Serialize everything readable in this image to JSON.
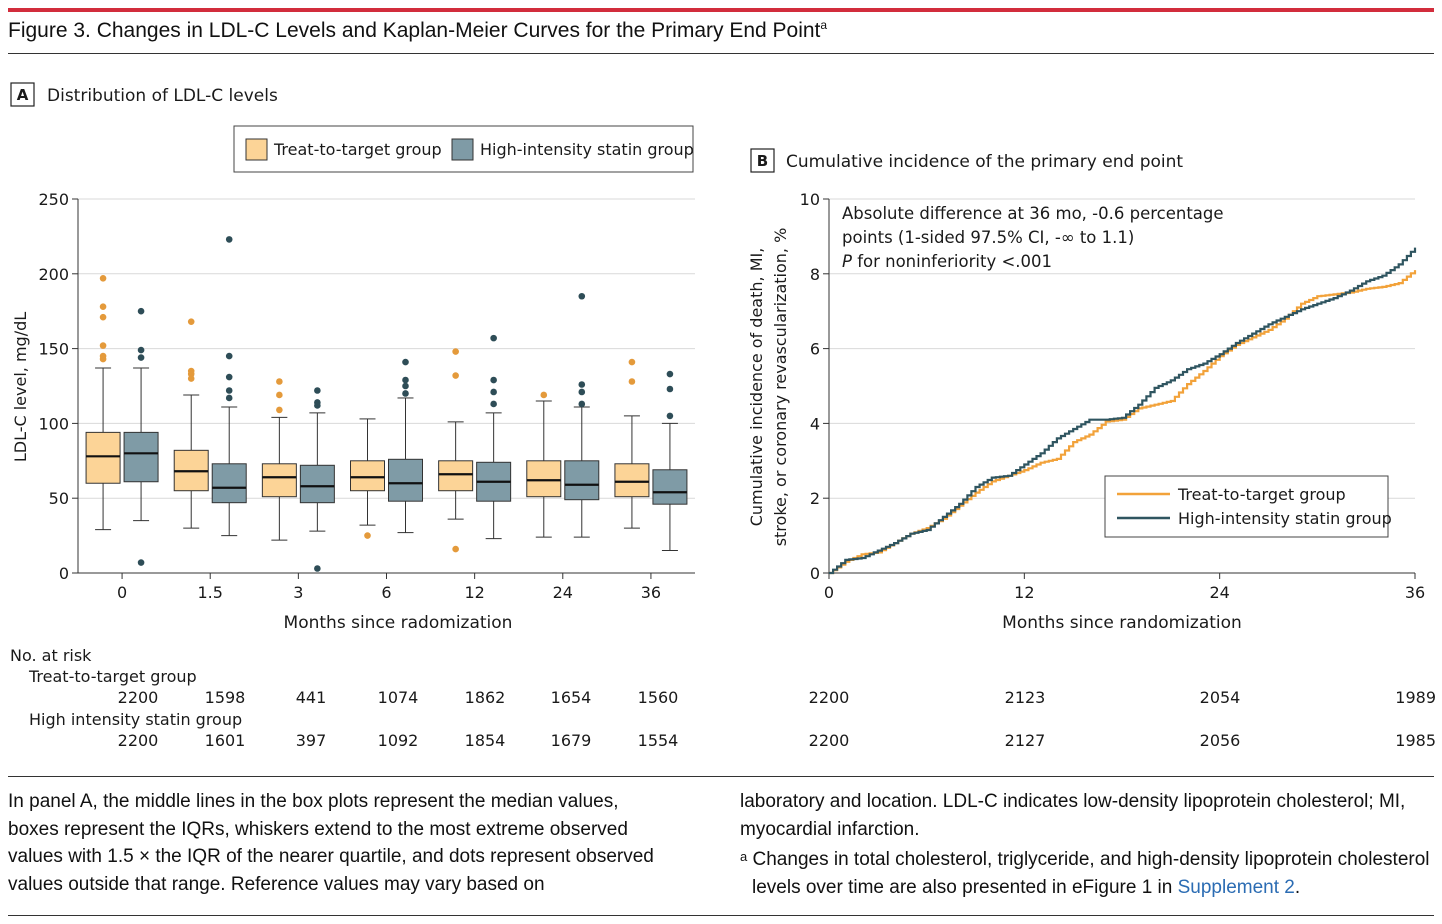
{
  "figure": {
    "title": "Figure 3. Changes in LDL-C Levels and Kaplan-Meier Curves for the Primary End Point",
    "title_sup": "a"
  },
  "colors": {
    "accent_bar": "#d22d3c",
    "treat_box": "#fcd497",
    "high_box": "#7f9ba6",
    "treat_dot": "#e49a3b",
    "high_dot": "#2e4d57",
    "treat_line": "#f2a23a",
    "high_line": "#2f5560"
  },
  "chart_data": [
    {
      "type": "box",
      "panel_letter": "A",
      "title": "Distribution of LDL-C levels",
      "xlabel": "Months since radomization",
      "ylabel": "LDL-C level, mg/dL",
      "ylim": [
        0,
        250
      ],
      "yticks": [
        0,
        50,
        100,
        150,
        200,
        250
      ],
      "categories": [
        "0",
        "1.5",
        "3",
        "6",
        "12",
        "24",
        "36"
      ],
      "grid": true,
      "legend_position": "top",
      "series": [
        {
          "name": "Treat-to-target group",
          "boxes": [
            {
              "low": 29,
              "q1": 60,
              "median": 78,
              "q3": 94,
              "high": 137,
              "outliers": [
                197,
                178,
                171,
                152,
                145,
                143
              ]
            },
            {
              "low": 30,
              "q1": 55,
              "median": 68,
              "q3": 82,
              "high": 119,
              "outliers": [
                168,
                135,
                133,
                130
              ]
            },
            {
              "low": 22,
              "q1": 51,
              "median": 64,
              "q3": 73,
              "high": 104,
              "outliers": [
                128,
                119,
                109
              ]
            },
            {
              "low": 32,
              "q1": 55,
              "median": 64,
              "q3": 75,
              "high": 103,
              "outliers": [
                25
              ]
            },
            {
              "low": 36,
              "q1": 55,
              "median": 66,
              "q3": 75,
              "high": 101,
              "outliers": [
                148,
                132,
                16
              ]
            },
            {
              "low": 24,
              "q1": 51,
              "median": 62,
              "q3": 75,
              "high": 115,
              "outliers": [
                119
              ]
            },
            {
              "low": 30,
              "q1": 51,
              "median": 61,
              "q3": 73,
              "high": 105,
              "outliers": [
                141,
                128
              ]
            }
          ]
        },
        {
          "name": "High-intensity statin group",
          "boxes": [
            {
              "low": 35,
              "q1": 61,
              "median": 80,
              "q3": 94,
              "high": 137,
              "outliers": [
                175,
                149,
                144,
                7
              ]
            },
            {
              "low": 25,
              "q1": 47,
              "median": 57,
              "q3": 73,
              "high": 111,
              "outliers": [
                223,
                145,
                131,
                122,
                117
              ]
            },
            {
              "low": 28,
              "q1": 47,
              "median": 58,
              "q3": 72,
              "high": 107,
              "outliers": [
                122,
                114,
                112,
                3
              ]
            },
            {
              "low": 27,
              "q1": 48,
              "median": 60,
              "q3": 76,
              "high": 117,
              "outliers": [
                141,
                129,
                125,
                120
              ]
            },
            {
              "low": 23,
              "q1": 48,
              "median": 61,
              "q3": 74,
              "high": 107,
              "outliers": [
                157,
                129,
                121,
                113
              ]
            },
            {
              "low": 24,
              "q1": 49,
              "median": 59,
              "q3": 75,
              "high": 111,
              "outliers": [
                185,
                126,
                121,
                113
              ]
            },
            {
              "low": 15,
              "q1": 46,
              "median": 54,
              "q3": 69,
              "high": 100,
              "outliers": [
                133,
                123,
                105
              ]
            }
          ]
        }
      ]
    },
    {
      "type": "line",
      "panel_letter": "B",
      "title": "Cumulative incidence of the primary end point",
      "xlabel": "Months since randomization",
      "ylabel": "Cumulative incidence of death, MI, stroke, or coronary revascularization, %",
      "ylabel_lines": [
        "Cumulative incidence of death, MI,",
        "stroke, or coronary revascularization, %"
      ],
      "xlim": [
        0,
        36
      ],
      "ylim": [
        0,
        10
      ],
      "xticks": [
        0,
        12,
        24,
        36
      ],
      "yticks": [
        0,
        2,
        4,
        6,
        8,
        10
      ],
      "grid": true,
      "legend_position": "bottom-right",
      "annotation_lines": [
        "Absolute difference at 36 mo, -0.6 percentage",
        "points (1-sided 97.5% CI, -∞ to 1.1)",
        "P for noninferiority <.001"
      ],
      "annotation_italic_prefix": "P",
      "series": [
        {
          "name": "Treat-to-target group",
          "x": [
            0,
            1,
            2,
            3,
            4,
            5,
            6,
            7,
            8,
            9,
            10,
            11,
            12,
            13,
            14,
            15,
            16,
            17,
            18,
            19,
            20,
            21,
            22,
            23,
            24,
            25,
            26,
            27,
            28,
            29,
            30,
            31,
            32,
            33,
            34,
            35,
            36
          ],
          "y": [
            0.0,
            0.3,
            0.5,
            0.55,
            0.8,
            1.05,
            1.2,
            1.45,
            1.8,
            2.15,
            2.45,
            2.6,
            2.75,
            2.95,
            3.05,
            3.5,
            3.7,
            4.05,
            4.1,
            4.4,
            4.5,
            4.6,
            5.05,
            5.4,
            5.8,
            6.1,
            6.3,
            6.5,
            6.8,
            7.2,
            7.4,
            7.45,
            7.5,
            7.6,
            7.65,
            7.75,
            8.1
          ]
        },
        {
          "name": "High-intensity statin group",
          "x": [
            0,
            1,
            2,
            3,
            4,
            5,
            6,
            7,
            8,
            9,
            10,
            11,
            12,
            13,
            14,
            15,
            16,
            17,
            18,
            19,
            20,
            21,
            22,
            23,
            24,
            25,
            26,
            27,
            28,
            29,
            30,
            31,
            32,
            33,
            34,
            35,
            36
          ],
          "y": [
            0.0,
            0.35,
            0.4,
            0.6,
            0.8,
            1.05,
            1.15,
            1.5,
            1.85,
            2.3,
            2.55,
            2.6,
            2.9,
            3.2,
            3.6,
            3.85,
            4.1,
            4.1,
            4.15,
            4.5,
            4.95,
            5.15,
            5.45,
            5.6,
            5.85,
            6.15,
            6.4,
            6.65,
            6.85,
            7.05,
            7.2,
            7.35,
            7.55,
            7.8,
            7.95,
            8.25,
            8.7
          ]
        }
      ]
    }
  ],
  "at_risk": {
    "header": "No. at risk",
    "groups": [
      {
        "label": "Treat-to-target group",
        "a_values": [
          "2200",
          "1598",
          "441",
          "1074",
          "1862",
          "1654",
          "1560"
        ],
        "b_values": [
          "2200",
          "2123",
          "2054",
          "1989"
        ]
      },
      {
        "label": "High intensity statin group",
        "a_values": [
          "2200",
          "1601",
          "397",
          "1092",
          "1854",
          "1679",
          "1554"
        ],
        "b_values": [
          "2200",
          "2127",
          "2056",
          "1985"
        ]
      }
    ]
  },
  "footnote": {
    "left": "In panel A, the middle lines in the box plots represent the median values, boxes represent the IQRs, whiskers extend to the most extreme observed values with 1.5 × the IQR of the nearer quartile, and dots represent observed values outside that range. Reference values may vary based on",
    "right_1": "laboratory and location. LDL-C indicates low-density lipoprotein cholesterol; MI, myocardial infarction.",
    "note_marker": "a",
    "note_text": "Changes in total cholesterol, triglyceride, and high-density lipoprotein cholesterol levels over time are also presented in eFigure 1 in",
    "link_text": "Supplement 2",
    "link_suffix": "."
  }
}
